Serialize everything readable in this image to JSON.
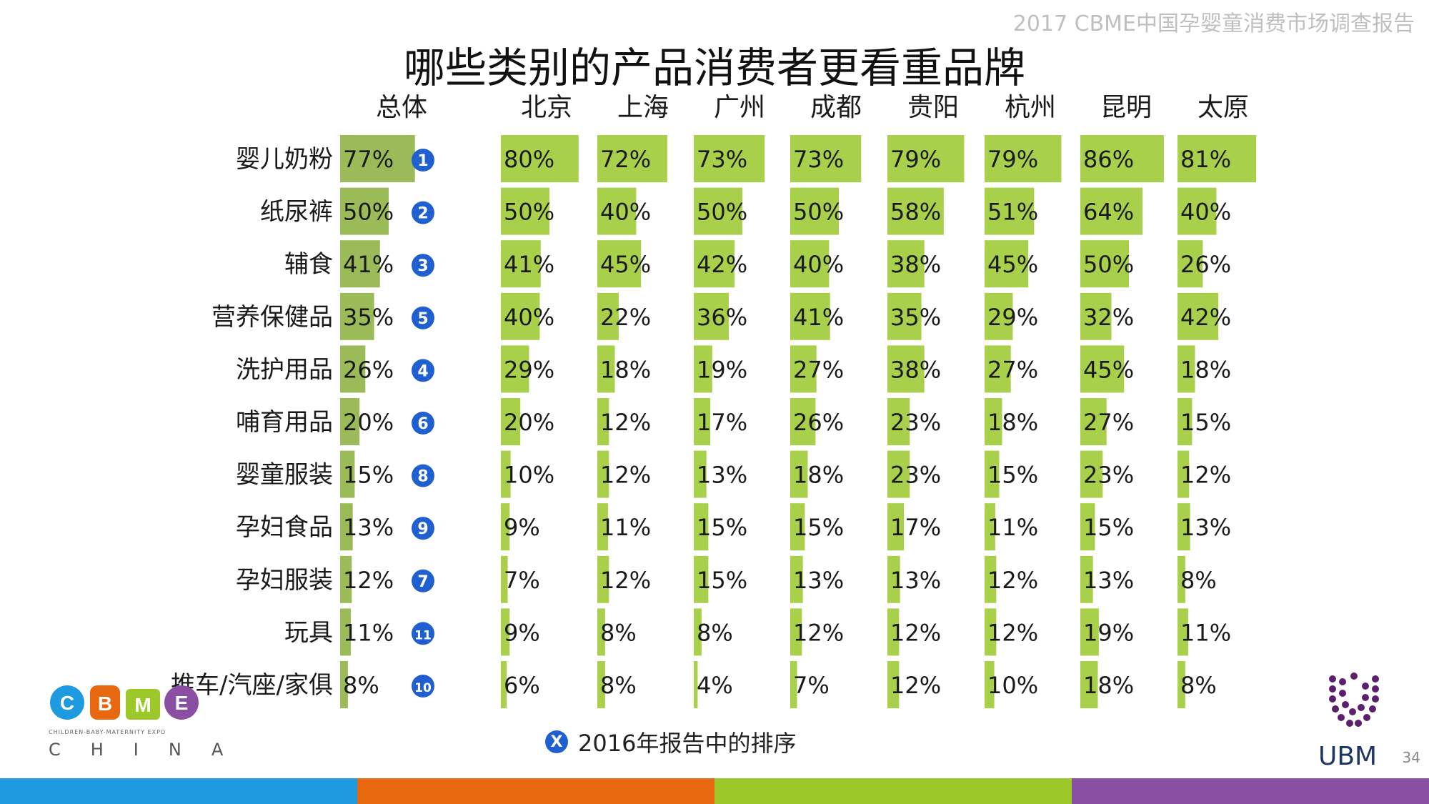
{
  "header_note": "2017 CBME中国孕婴童消费市场调查报告",
  "page_number": "34",
  "legend": {
    "badge": "X",
    "text": "2016年报告中的排序"
  },
  "logos": {
    "cbme": {
      "letters": [
        "C",
        "B",
        "M",
        "E"
      ],
      "tagline": "CHILDREN-BABY-MATERNITY EXPO",
      "country": "CHINA"
    },
    "ubm": {
      "text": "UBM"
    }
  },
  "colors": {
    "overall_bar": "#9bbb59",
    "city_bar": "#a9d04a",
    "rank_badge": "#1f5fd0",
    "stripe": [
      "#1e9be0",
      "#e8680f",
      "#9dc82a",
      "#8a4fa3"
    ]
  },
  "chart_data": {
    "type": "bar",
    "title": "哪些类别的产品消费者更看重品牌",
    "categories": [
      "婴儿奶粉",
      "纸尿裤",
      "辅食",
      "营养保健品",
      "洗护用品",
      "哺育用品",
      "婴童服装",
      "孕妇食品",
      "孕妇服装",
      "玩具",
      "推车/汽座/家俱"
    ],
    "rank_2016": [
      "1",
      "2",
      "3",
      "5",
      "4",
      "6",
      "8",
      "9",
      "7",
      "11",
      "10"
    ],
    "series": [
      {
        "name": "总体",
        "values": [
          77,
          50,
          41,
          35,
          26,
          20,
          15,
          13,
          12,
          11,
          8
        ]
      },
      {
        "name": "北京",
        "values": [
          80,
          50,
          41,
          40,
          29,
          20,
          10,
          9,
          7,
          9,
          6
        ]
      },
      {
        "name": "上海",
        "values": [
          72,
          40,
          45,
          22,
          18,
          12,
          12,
          11,
          12,
          8,
          8
        ]
      },
      {
        "name": "广州",
        "values": [
          73,
          50,
          42,
          36,
          19,
          17,
          13,
          15,
          15,
          8,
          4
        ]
      },
      {
        "name": "成都",
        "values": [
          73,
          50,
          40,
          41,
          27,
          26,
          18,
          15,
          13,
          12,
          7
        ]
      },
      {
        "name": "贵阳",
        "values": [
          79,
          58,
          38,
          35,
          38,
          23,
          23,
          17,
          13,
          12,
          12
        ]
      },
      {
        "name": "杭州",
        "values": [
          79,
          51,
          45,
          29,
          27,
          18,
          15,
          11,
          12,
          12,
          10
        ]
      },
      {
        "name": "昆明",
        "values": [
          86,
          64,
          50,
          32,
          45,
          27,
          23,
          15,
          13,
          19,
          18
        ]
      },
      {
        "name": "太原",
        "values": [
          81,
          40,
          26,
          42,
          18,
          15,
          12,
          13,
          8,
          11,
          8
        ]
      }
    ],
    "unit": "%"
  }
}
